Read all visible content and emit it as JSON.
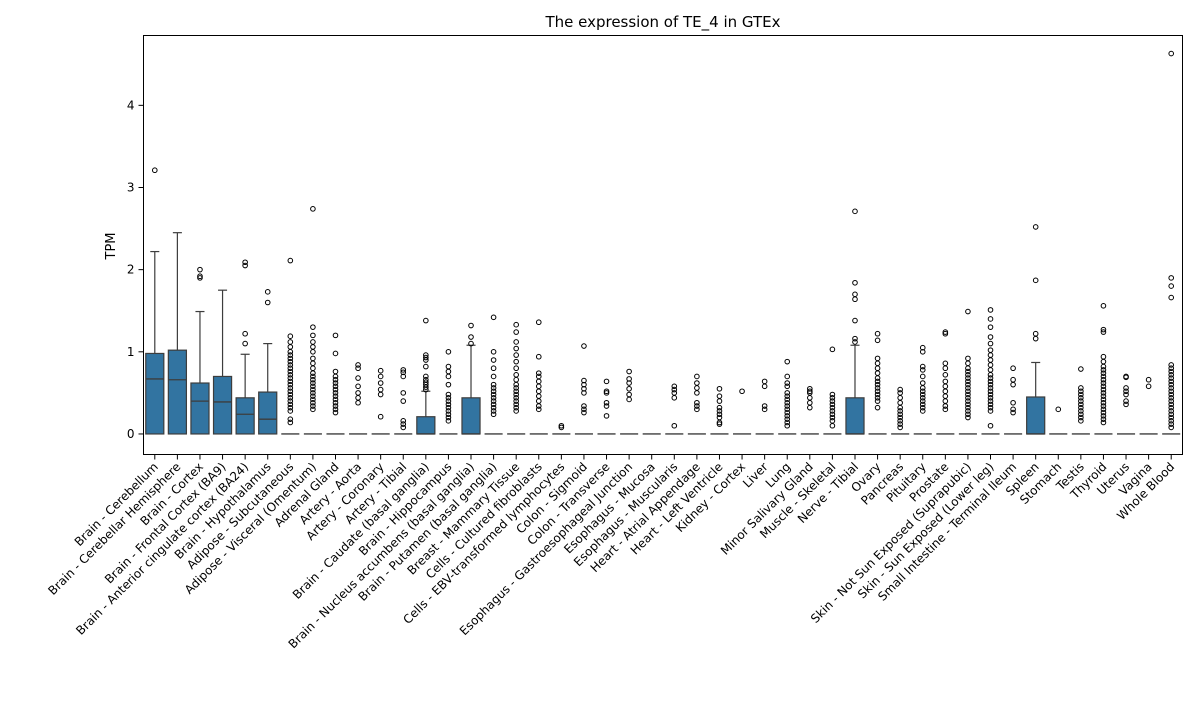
{
  "chart_data": {
    "type": "box",
    "title": "The expression of TE_4 in GTEx",
    "xlabel": "",
    "ylabel": "TPM",
    "ylim": [
      -0.25,
      4.85
    ],
    "yticks": [
      0,
      1,
      2,
      3,
      4
    ],
    "legend": "none",
    "grid": false,
    "box_color": "#3274a1",
    "categories": [
      "Brain - Cerebellum",
      "Brain - Cerebellar Hemisphere",
      "Brain - Cortex",
      "Brain - Frontal Cortex (BA9)",
      "Brain - Anterior cingulate cortex (BA24)",
      "Brain - Hypothalamus",
      "Adipose - Subcutaneous",
      "Adipose - Visceral (Omentum)",
      "Adrenal Gland",
      "Artery - Aorta",
      "Artery - Coronary",
      "Artery - Tibial",
      "Brain - Caudate (basal ganglia)",
      "Brain - Hippocampus",
      "Brain - Nucleus accumbens (basal ganglia)",
      "Brain - Putamen (basal ganglia)",
      "Breast - Mammary Tissue",
      "Cells - Cultured fibroblasts",
      "Cells - EBV-transformed lymphocytes",
      "Colon - Sigmoid",
      "Colon - Transverse",
      "Esophagus - Gastroesophageal Junction",
      "Esophagus - Mucosa",
      "Esophagus - Muscularis",
      "Heart - Atrial Appendage",
      "Heart - Left Ventricle",
      "Kidney - Cortex",
      "Liver",
      "Lung",
      "Minor Salivary Gland",
      "Muscle - Skeletal",
      "Nerve - Tibial",
      "Ovary",
      "Pancreas",
      "Pituitary",
      "Prostate",
      "Skin - Not Sun Exposed (Suprapubic)",
      "Skin - Sun Exposed (Lower leg)",
      "Small Intestine - Terminal Ileum",
      "Spleen",
      "Stomach",
      "Testis",
      "Thyroid",
      "Uterus",
      "Vagina",
      "Whole Blood"
    ],
    "boxes": [
      {
        "q1": 0,
        "median": 0.67,
        "q3": 0.98,
        "whisker_low": 0,
        "whisker_high": 2.22,
        "outliers": [
          3.21
        ]
      },
      {
        "q1": 0,
        "median": 0.66,
        "q3": 1.02,
        "whisker_low": 0,
        "whisker_high": 2.45,
        "outliers": []
      },
      {
        "q1": 0,
        "median": 0.4,
        "q3": 0.62,
        "whisker_low": 0,
        "whisker_high": 1.49,
        "outliers": [
          1.9,
          1.92,
          2.0
        ]
      },
      {
        "q1": 0,
        "median": 0.39,
        "q3": 0.7,
        "whisker_low": 0,
        "whisker_high": 1.75,
        "outliers": []
      },
      {
        "q1": 0,
        "median": 0.24,
        "q3": 0.44,
        "whisker_low": 0,
        "whisker_high": 0.97,
        "outliers": [
          1.1,
          1.22,
          2.05,
          2.09
        ]
      },
      {
        "q1": 0,
        "median": 0.18,
        "q3": 0.51,
        "whisker_low": 0,
        "whisker_high": 1.1,
        "outliers": [
          1.6,
          1.73
        ]
      },
      {
        "q1": 0,
        "median": 0,
        "q3": 0,
        "whisker_low": 0,
        "whisker_high": 0,
        "outliers": [
          0.14,
          0.18,
          0.28,
          0.32,
          0.36,
          0.4,
          0.44,
          0.48,
          0.52,
          0.56,
          0.6,
          0.64,
          0.68,
          0.72,
          0.76,
          0.8,
          0.84,
          0.88,
          0.92,
          0.96,
          1.0,
          1.06,
          1.12,
          1.19,
          2.11
        ]
      },
      {
        "q1": 0,
        "median": 0,
        "q3": 0,
        "whisker_low": 0,
        "whisker_high": 0,
        "outliers": [
          0.3,
          0.34,
          0.38,
          0.42,
          0.46,
          0.5,
          0.54,
          0.58,
          0.62,
          0.66,
          0.7,
          0.74,
          0.8,
          0.86,
          0.92,
          1.0,
          1.06,
          1.12,
          1.2,
          1.3,
          2.74
        ]
      },
      {
        "q1": 0,
        "median": 0,
        "q3": 0,
        "whisker_low": 0,
        "whisker_high": 0,
        "outliers": [
          0.26,
          0.3,
          0.34,
          0.38,
          0.42,
          0.46,
          0.5,
          0.54,
          0.58,
          0.62,
          0.66,
          0.7,
          0.76,
          0.98,
          1.2
        ]
      },
      {
        "q1": 0,
        "median": 0,
        "q3": 0,
        "whisker_low": 0,
        "whisker_high": 0,
        "outliers": [
          0.38,
          0.44,
          0.5,
          0.58,
          0.68,
          0.8,
          0.84
        ]
      },
      {
        "q1": 0,
        "median": 0,
        "q3": 0,
        "whisker_low": 0,
        "whisker_high": 0,
        "outliers": [
          0.21,
          0.48,
          0.54,
          0.62,
          0.7,
          0.77
        ]
      },
      {
        "q1": 0,
        "median": 0,
        "q3": 0,
        "whisker_low": 0,
        "whisker_high": 0,
        "outliers": [
          0.08,
          0.12,
          0.16,
          0.4,
          0.5,
          0.7,
          0.75,
          0.78
        ]
      },
      {
        "q1": 0,
        "median": 0,
        "q3": 0.21,
        "whisker_low": 0,
        "whisker_high": 0.52,
        "outliers": [
          0.54,
          0.57,
          0.6,
          0.63,
          0.66,
          0.7,
          0.82,
          0.9,
          0.93,
          0.96,
          1.38
        ]
      },
      {
        "q1": 0,
        "median": 0,
        "q3": 0,
        "whisker_low": 0,
        "whisker_high": 0,
        "outliers": [
          0.16,
          0.2,
          0.24,
          0.28,
          0.32,
          0.36,
          0.4,
          0.44,
          0.48,
          0.6,
          0.7,
          0.76,
          0.82,
          1.0
        ]
      },
      {
        "q1": 0,
        "median": 0,
        "q3": 0.44,
        "whisker_low": 0,
        "whisker_high": 1.08,
        "outliers": [
          1.1,
          1.18,
          1.32
        ]
      },
      {
        "q1": 0,
        "median": 0,
        "q3": 0,
        "whisker_low": 0,
        "whisker_high": 0,
        "outliers": [
          0.24,
          0.28,
          0.32,
          0.36,
          0.4,
          0.44,
          0.48,
          0.52,
          0.56,
          0.6,
          0.7,
          0.8,
          0.9,
          1.0,
          1.42
        ]
      },
      {
        "q1": 0,
        "median": 0,
        "q3": 0,
        "whisker_low": 0,
        "whisker_high": 0,
        "outliers": [
          0.28,
          0.32,
          0.36,
          0.4,
          0.44,
          0.48,
          0.52,
          0.56,
          0.6,
          0.66,
          0.72,
          0.8,
          0.88,
          0.96,
          1.04,
          1.12,
          1.24,
          1.33
        ]
      },
      {
        "q1": 0,
        "median": 0,
        "q3": 0,
        "whisker_low": 0,
        "whisker_high": 0,
        "outliers": [
          0.3,
          0.34,
          0.4,
          0.46,
          0.52,
          0.58,
          0.64,
          0.7,
          0.74,
          0.94,
          1.36
        ]
      },
      {
        "q1": 0,
        "median": 0,
        "q3": 0,
        "whisker_low": 0,
        "whisker_high": 0,
        "outliers": [
          0.08,
          0.1
        ]
      },
      {
        "q1": 0,
        "median": 0,
        "q3": 0,
        "whisker_low": 0,
        "whisker_high": 0,
        "outliers": [
          0.26,
          0.3,
          0.34,
          0.5,
          0.55,
          0.6,
          0.65,
          1.07
        ]
      },
      {
        "q1": 0,
        "median": 0,
        "q3": 0,
        "whisker_low": 0,
        "whisker_high": 0,
        "outliers": [
          0.22,
          0.34,
          0.38,
          0.5,
          0.52,
          0.64
        ]
      },
      {
        "q1": 0,
        "median": 0,
        "q3": 0,
        "whisker_low": 0,
        "whisker_high": 0,
        "outliers": [
          0.42,
          0.48,
          0.55,
          0.62,
          0.67,
          0.76
        ]
      },
      {
        "q1": 0,
        "median": 0,
        "q3": 0,
        "whisker_low": 0,
        "whisker_high": 0,
        "outliers": []
      },
      {
        "q1": 0,
        "median": 0,
        "q3": 0,
        "whisker_low": 0,
        "whisker_high": 0,
        "outliers": [
          0.1,
          0.44,
          0.5,
          0.54,
          0.58
        ]
      },
      {
        "q1": 0,
        "median": 0,
        "q3": 0,
        "whisker_low": 0,
        "whisker_high": 0,
        "outliers": [
          0.3,
          0.34,
          0.38,
          0.5,
          0.56,
          0.62,
          0.7
        ]
      },
      {
        "q1": 0,
        "median": 0,
        "q3": 0,
        "whisker_low": 0,
        "whisker_high": 0,
        "outliers": [
          0.12,
          0.14,
          0.2,
          0.24,
          0.28,
          0.32,
          0.4,
          0.46,
          0.55
        ]
      },
      {
        "q1": 0,
        "median": 0,
        "q3": 0,
        "whisker_low": 0,
        "whisker_high": 0,
        "outliers": [
          0.52
        ]
      },
      {
        "q1": 0,
        "median": 0,
        "q3": 0,
        "whisker_low": 0,
        "whisker_high": 0,
        "outliers": [
          0.3,
          0.34,
          0.58,
          0.64
        ]
      },
      {
        "q1": 0,
        "median": 0,
        "q3": 0,
        "whisker_low": 0,
        "whisker_high": 0,
        "outliers": [
          0.1,
          0.14,
          0.18,
          0.22,
          0.26,
          0.3,
          0.34,
          0.38,
          0.42,
          0.46,
          0.5,
          0.58,
          0.62,
          0.7,
          0.88
        ]
      },
      {
        "q1": 0,
        "median": 0,
        "q3": 0,
        "whisker_low": 0,
        "whisker_high": 0,
        "outliers": [
          0.32,
          0.38,
          0.44,
          0.5,
          0.52,
          0.55
        ]
      },
      {
        "q1": 0,
        "median": 0,
        "q3": 0,
        "whisker_low": 0,
        "whisker_high": 0,
        "outliers": [
          0.1,
          0.16,
          0.2,
          0.24,
          0.28,
          0.32,
          0.36,
          0.4,
          0.44,
          0.48,
          1.03
        ]
      },
      {
        "q1": 0,
        "median": 0,
        "q3": 0.44,
        "whisker_low": 0,
        "whisker_high": 1.08,
        "outliers": [
          1.12,
          1.16,
          1.38,
          1.64,
          1.7,
          1.84,
          2.71
        ]
      },
      {
        "q1": 0,
        "median": 0,
        "q3": 0,
        "whisker_low": 0,
        "whisker_high": 0,
        "outliers": [
          0.32,
          0.4,
          0.44,
          0.48,
          0.52,
          0.56,
          0.6,
          0.64,
          0.68,
          0.74,
          0.8,
          0.86,
          0.92,
          1.14,
          1.22
        ]
      },
      {
        "q1": 0,
        "median": 0,
        "q3": 0,
        "whisker_low": 0,
        "whisker_high": 0,
        "outliers": [
          0.08,
          0.12,
          0.16,
          0.2,
          0.24,
          0.28,
          0.32,
          0.38,
          0.44,
          0.5,
          0.54
        ]
      },
      {
        "q1": 0,
        "median": 0,
        "q3": 0,
        "whisker_low": 0,
        "whisker_high": 0,
        "outliers": [
          0.28,
          0.32,
          0.36,
          0.4,
          0.44,
          0.48,
          0.52,
          0.56,
          0.62,
          0.7,
          0.78,
          0.82,
          1.0,
          1.05
        ]
      },
      {
        "q1": 0,
        "median": 0,
        "q3": 0,
        "whisker_low": 0,
        "whisker_high": 0,
        "outliers": [
          0.3,
          0.34,
          0.4,
          0.46,
          0.52,
          0.58,
          0.64,
          0.72,
          0.8,
          0.86,
          1.22,
          1.24
        ]
      },
      {
        "q1": 0,
        "median": 0,
        "q3": 0,
        "whisker_low": 0,
        "whisker_high": 0,
        "outliers": [
          0.2,
          0.24,
          0.28,
          0.32,
          0.36,
          0.4,
          0.44,
          0.48,
          0.52,
          0.56,
          0.6,
          0.64,
          0.68,
          0.72,
          0.76,
          0.8,
          0.86,
          0.92,
          1.49
        ]
      },
      {
        "q1": 0,
        "median": 0,
        "q3": 0,
        "whisker_low": 0,
        "whisker_high": 0,
        "outliers": [
          0.1,
          0.28,
          0.32,
          0.36,
          0.4,
          0.44,
          0.48,
          0.52,
          0.56,
          0.6,
          0.64,
          0.68,
          0.72,
          0.78,
          0.84,
          0.9,
          0.96,
          1.02,
          1.1,
          1.18,
          1.3,
          1.4,
          1.51
        ]
      },
      {
        "q1": 0,
        "median": 0,
        "q3": 0,
        "whisker_low": 0,
        "whisker_high": 0,
        "outliers": [
          0.26,
          0.3,
          0.38,
          0.6,
          0.66,
          0.8
        ]
      },
      {
        "q1": 0,
        "median": 0,
        "q3": 0.45,
        "whisker_low": 0,
        "whisker_high": 0.87,
        "outliers": [
          1.16,
          1.22,
          1.87,
          2.52
        ]
      },
      {
        "q1": 0,
        "median": 0,
        "q3": 0,
        "whisker_low": 0,
        "whisker_high": 0,
        "outliers": [
          0.3
        ]
      },
      {
        "q1": 0,
        "median": 0,
        "q3": 0,
        "whisker_low": 0,
        "whisker_high": 0,
        "outliers": [
          0.16,
          0.2,
          0.24,
          0.28,
          0.32,
          0.36,
          0.4,
          0.44,
          0.48,
          0.52,
          0.56,
          0.79
        ]
      },
      {
        "q1": 0,
        "median": 0,
        "q3": 0,
        "whisker_low": 0,
        "whisker_high": 0,
        "outliers": [
          0.14,
          0.18,
          0.22,
          0.26,
          0.3,
          0.34,
          0.38,
          0.42,
          0.46,
          0.5,
          0.54,
          0.58,
          0.62,
          0.66,
          0.7,
          0.74,
          0.78,
          0.82,
          0.88,
          0.94,
          1.24,
          1.27,
          1.56
        ]
      },
      {
        "q1": 0,
        "median": 0,
        "q3": 0,
        "whisker_low": 0,
        "whisker_high": 0,
        "outliers": [
          0.36,
          0.4,
          0.48,
          0.52,
          0.56,
          0.69,
          0.7
        ]
      },
      {
        "q1": 0,
        "median": 0,
        "q3": 0,
        "whisker_low": 0,
        "whisker_high": 0,
        "outliers": [
          0.58,
          0.66
        ]
      },
      {
        "q1": 0,
        "median": 0,
        "q3": 0,
        "whisker_low": 0,
        "whisker_high": 0,
        "outliers": [
          0.08,
          0.12,
          0.16,
          0.2,
          0.24,
          0.28,
          0.32,
          0.36,
          0.4,
          0.44,
          0.48,
          0.52,
          0.56,
          0.6,
          0.64,
          0.68,
          0.72,
          0.76,
          0.8,
          0.84,
          1.66,
          1.8,
          1.9,
          4.63
        ]
      }
    ]
  }
}
